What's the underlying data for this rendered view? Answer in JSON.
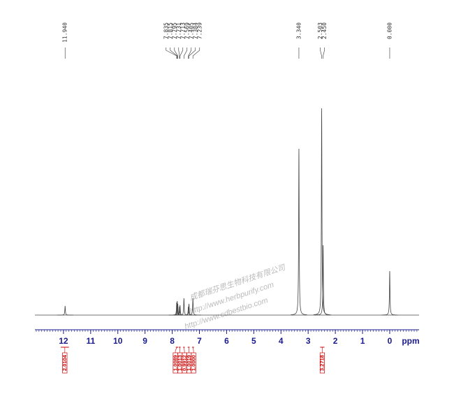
{
  "chart_data": {
    "type": "spectrum",
    "x_label": "ppm",
    "xlim": [
      13.05,
      -1.08
    ],
    "xticks": [
      12,
      11,
      10,
      9,
      8,
      7,
      6,
      5,
      4,
      3,
      2,
      1,
      0
    ],
    "ylim": [
      0,
      300
    ],
    "color": "#444444",
    "peaks": {
      "x": [
        11.94,
        7.835,
        7.815,
        7.795,
        7.731,
        7.713,
        7.569,
        7.405,
        7.384,
        7.239,
        3.34,
        2.503,
        2.45,
        0
      ],
      "x_labels": [
        "11.940",
        "7.835",
        "7.815",
        "7.795",
        "7.731",
        "7.713",
        "7.569",
        "7.405",
        "7.384",
        "7.239",
        "3.340",
        "2.503",
        "2.450",
        "0.000"
      ],
      "values": [
        13,
        18,
        20,
        16,
        12,
        14,
        24,
        12,
        16,
        24,
        238,
        296,
        100,
        63
      ]
    },
    "integrals": {
      "color": "#cc0000",
      "ranges": [
        [
          12.1,
          11.8
        ],
        [
          7.87,
          7.78
        ],
        [
          7.76,
          7.69
        ],
        [
          7.6,
          7.54
        ],
        [
          7.43,
          7.36
        ],
        [
          7.27,
          7.2
        ],
        [
          2.56,
          2.4
        ]
      ],
      "values": [
        2.0104,
        1.0089,
        1.0013,
        0.9912,
        1.0019,
        1,
        3.2718
      ],
      "value_labels": [
        "2.0104",
        "1.0089",
        "1.0013",
        "0.9912",
        "1.0019",
        "1.0000",
        "3.2718"
      ]
    },
    "watermark": [
      "成都瑞芬思生物科技有限公司",
      "http://www.herbpurify.com",
      "http://www.cdbestbio.com"
    ]
  }
}
